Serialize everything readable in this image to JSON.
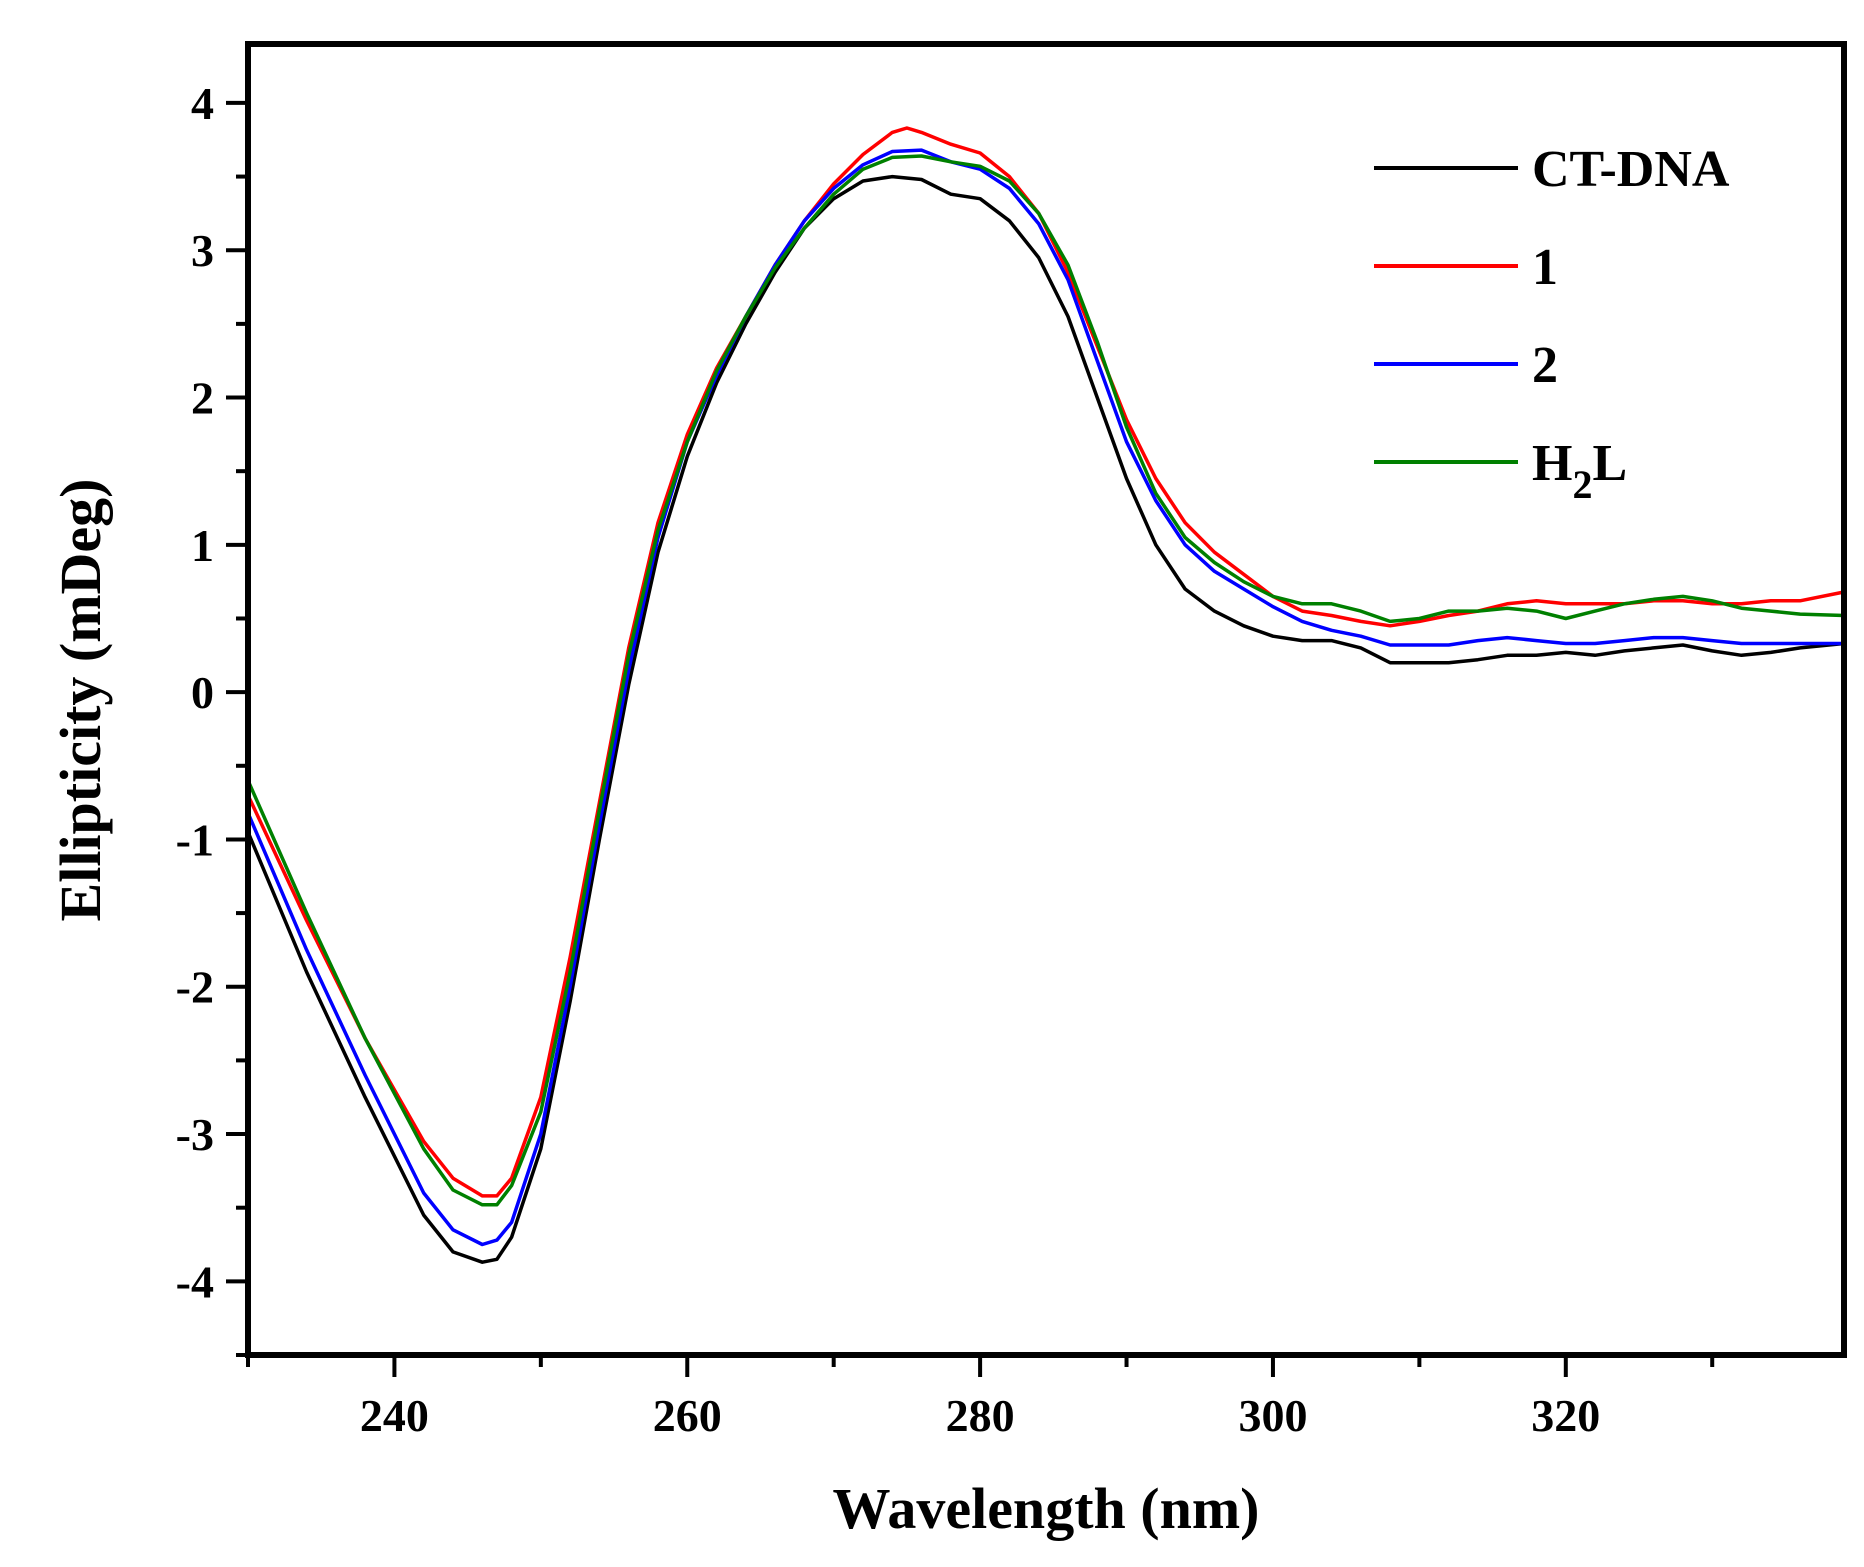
{
  "chart_data": {
    "type": "line",
    "xlabel": "Wavelength (nm)",
    "ylabel": "Ellipticity (mDeg)",
    "xlim": [
      230,
      339
    ],
    "ylim": [
      -4.5,
      4.4
    ],
    "x_ticks": [
      240,
      260,
      280,
      300,
      320
    ],
    "y_ticks": [
      4,
      3,
      2,
      1,
      0,
      -1,
      -2,
      -3,
      -4
    ],
    "x_tick_labels": [
      "240",
      "260",
      "280",
      "300",
      "320"
    ],
    "y_tick_labels": [
      "4",
      "3",
      "2",
      "1",
      "0",
      "-1",
      "-2",
      "-3",
      "-4"
    ],
    "legend_position": "top-right",
    "series": [
      {
        "name": "CT-DNA",
        "label_main": "CT-DNA",
        "label_sub": "",
        "label_tail": "",
        "color": "#000000",
        "points": [
          [
            230,
            -0.95
          ],
          [
            234,
            -1.9
          ],
          [
            238,
            -2.75
          ],
          [
            242,
            -3.55
          ],
          [
            244,
            -3.8
          ],
          [
            246,
            -3.87
          ],
          [
            247,
            -3.85
          ],
          [
            248,
            -3.7
          ],
          [
            250,
            -3.1
          ],
          [
            252,
            -2.1
          ],
          [
            254,
            -1.0
          ],
          [
            256,
            0.05
          ],
          [
            258,
            0.95
          ],
          [
            260,
            1.6
          ],
          [
            262,
            2.1
          ],
          [
            264,
            2.5
          ],
          [
            266,
            2.85
          ],
          [
            268,
            3.15
          ],
          [
            270,
            3.35
          ],
          [
            272,
            3.47
          ],
          [
            274,
            3.5
          ],
          [
            276,
            3.48
          ],
          [
            278,
            3.38
          ],
          [
            280,
            3.35
          ],
          [
            282,
            3.2
          ],
          [
            284,
            2.95
          ],
          [
            286,
            2.55
          ],
          [
            288,
            2.0
          ],
          [
            290,
            1.45
          ],
          [
            292,
            1.0
          ],
          [
            294,
            0.7
          ],
          [
            296,
            0.55
          ],
          [
            298,
            0.45
          ],
          [
            300,
            0.38
          ],
          [
            302,
            0.35
          ],
          [
            304,
            0.35
          ],
          [
            306,
            0.3
          ],
          [
            308,
            0.2
          ],
          [
            310,
            0.2
          ],
          [
            312,
            0.2
          ],
          [
            314,
            0.22
          ],
          [
            316,
            0.25
          ],
          [
            318,
            0.25
          ],
          [
            320,
            0.27
          ],
          [
            322,
            0.25
          ],
          [
            324,
            0.28
          ],
          [
            326,
            0.3
          ],
          [
            328,
            0.32
          ],
          [
            330,
            0.28
          ],
          [
            332,
            0.25
          ],
          [
            334,
            0.27
          ],
          [
            336,
            0.3
          ],
          [
            339,
            0.33
          ]
        ]
      },
      {
        "name": "1",
        "label_main": "1",
        "label_sub": "",
        "label_tail": "",
        "color": "#ff0000",
        "points": [
          [
            230,
            -0.7
          ],
          [
            234,
            -1.55
          ],
          [
            238,
            -2.35
          ],
          [
            242,
            -3.05
          ],
          [
            244,
            -3.3
          ],
          [
            246,
            -3.42
          ],
          [
            247,
            -3.42
          ],
          [
            248,
            -3.3
          ],
          [
            250,
            -2.75
          ],
          [
            252,
            -1.8
          ],
          [
            254,
            -0.75
          ],
          [
            256,
            0.3
          ],
          [
            258,
            1.15
          ],
          [
            260,
            1.75
          ],
          [
            262,
            2.2
          ],
          [
            264,
            2.55
          ],
          [
            266,
            2.9
          ],
          [
            268,
            3.2
          ],
          [
            270,
            3.45
          ],
          [
            272,
            3.65
          ],
          [
            274,
            3.8
          ],
          [
            275,
            3.83
          ],
          [
            276,
            3.8
          ],
          [
            278,
            3.72
          ],
          [
            280,
            3.66
          ],
          [
            282,
            3.5
          ],
          [
            284,
            3.25
          ],
          [
            286,
            2.85
          ],
          [
            288,
            2.35
          ],
          [
            290,
            1.85
          ],
          [
            292,
            1.45
          ],
          [
            294,
            1.15
          ],
          [
            296,
            0.95
          ],
          [
            298,
            0.8
          ],
          [
            300,
            0.65
          ],
          [
            302,
            0.55
          ],
          [
            304,
            0.52
          ],
          [
            306,
            0.48
          ],
          [
            308,
            0.45
          ],
          [
            310,
            0.48
          ],
          [
            312,
            0.52
          ],
          [
            314,
            0.55
          ],
          [
            316,
            0.6
          ],
          [
            318,
            0.62
          ],
          [
            320,
            0.6
          ],
          [
            322,
            0.6
          ],
          [
            324,
            0.6
          ],
          [
            326,
            0.62
          ],
          [
            328,
            0.62
          ],
          [
            330,
            0.6
          ],
          [
            332,
            0.6
          ],
          [
            334,
            0.62
          ],
          [
            336,
            0.62
          ],
          [
            339,
            0.68
          ]
        ]
      },
      {
        "name": "2",
        "label_main": "2",
        "label_sub": "",
        "label_tail": "",
        "color": "#0000ff",
        "points": [
          [
            230,
            -0.82
          ],
          [
            234,
            -1.75
          ],
          [
            238,
            -2.6
          ],
          [
            242,
            -3.4
          ],
          [
            244,
            -3.65
          ],
          [
            246,
            -3.75
          ],
          [
            247,
            -3.72
          ],
          [
            248,
            -3.6
          ],
          [
            250,
            -3.0
          ],
          [
            252,
            -2.0
          ],
          [
            254,
            -0.9
          ],
          [
            256,
            0.15
          ],
          [
            258,
            1.05
          ],
          [
            260,
            1.7
          ],
          [
            262,
            2.15
          ],
          [
            264,
            2.55
          ],
          [
            266,
            2.9
          ],
          [
            268,
            3.2
          ],
          [
            270,
            3.42
          ],
          [
            272,
            3.58
          ],
          [
            274,
            3.67
          ],
          [
            276,
            3.68
          ],
          [
            278,
            3.6
          ],
          [
            280,
            3.55
          ],
          [
            282,
            3.42
          ],
          [
            284,
            3.18
          ],
          [
            286,
            2.8
          ],
          [
            288,
            2.25
          ],
          [
            290,
            1.7
          ],
          [
            292,
            1.3
          ],
          [
            294,
            1.0
          ],
          [
            296,
            0.82
          ],
          [
            298,
            0.7
          ],
          [
            300,
            0.58
          ],
          [
            302,
            0.48
          ],
          [
            304,
            0.42
          ],
          [
            306,
            0.38
          ],
          [
            308,
            0.32
          ],
          [
            310,
            0.32
          ],
          [
            312,
            0.32
          ],
          [
            314,
            0.35
          ],
          [
            316,
            0.37
          ],
          [
            318,
            0.35
          ],
          [
            320,
            0.33
          ],
          [
            322,
            0.33
          ],
          [
            324,
            0.35
          ],
          [
            326,
            0.37
          ],
          [
            328,
            0.37
          ],
          [
            330,
            0.35
          ],
          [
            332,
            0.33
          ],
          [
            334,
            0.33
          ],
          [
            336,
            0.33
          ],
          [
            339,
            0.33
          ]
        ]
      },
      {
        "name": "H2L",
        "label_main": "H",
        "label_sub": "2",
        "label_tail": "L",
        "color": "#008000",
        "points": [
          [
            230,
            -0.6
          ],
          [
            234,
            -1.5
          ],
          [
            238,
            -2.35
          ],
          [
            242,
            -3.1
          ],
          [
            244,
            -3.38
          ],
          [
            246,
            -3.48
          ],
          [
            247,
            -3.48
          ],
          [
            248,
            -3.35
          ],
          [
            250,
            -2.85
          ],
          [
            252,
            -1.9
          ],
          [
            254,
            -0.8
          ],
          [
            256,
            0.25
          ],
          [
            258,
            1.1
          ],
          [
            260,
            1.7
          ],
          [
            262,
            2.18
          ],
          [
            264,
            2.55
          ],
          [
            266,
            2.88
          ],
          [
            268,
            3.15
          ],
          [
            270,
            3.38
          ],
          [
            272,
            3.55
          ],
          [
            274,
            3.63
          ],
          [
            276,
            3.64
          ],
          [
            278,
            3.6
          ],
          [
            280,
            3.57
          ],
          [
            282,
            3.47
          ],
          [
            284,
            3.25
          ],
          [
            286,
            2.9
          ],
          [
            288,
            2.38
          ],
          [
            290,
            1.8
          ],
          [
            292,
            1.35
          ],
          [
            294,
            1.05
          ],
          [
            296,
            0.88
          ],
          [
            298,
            0.75
          ],
          [
            300,
            0.65
          ],
          [
            302,
            0.6
          ],
          [
            304,
            0.6
          ],
          [
            306,
            0.55
          ],
          [
            308,
            0.48
          ],
          [
            310,
            0.5
          ],
          [
            312,
            0.55
          ],
          [
            314,
            0.55
          ],
          [
            316,
            0.57
          ],
          [
            318,
            0.55
          ],
          [
            320,
            0.5
          ],
          [
            322,
            0.55
          ],
          [
            324,
            0.6
          ],
          [
            326,
            0.63
          ],
          [
            328,
            0.65
          ],
          [
            330,
            0.62
          ],
          [
            332,
            0.57
          ],
          [
            334,
            0.55
          ],
          [
            336,
            0.53
          ],
          [
            339,
            0.52
          ]
        ]
      }
    ]
  }
}
